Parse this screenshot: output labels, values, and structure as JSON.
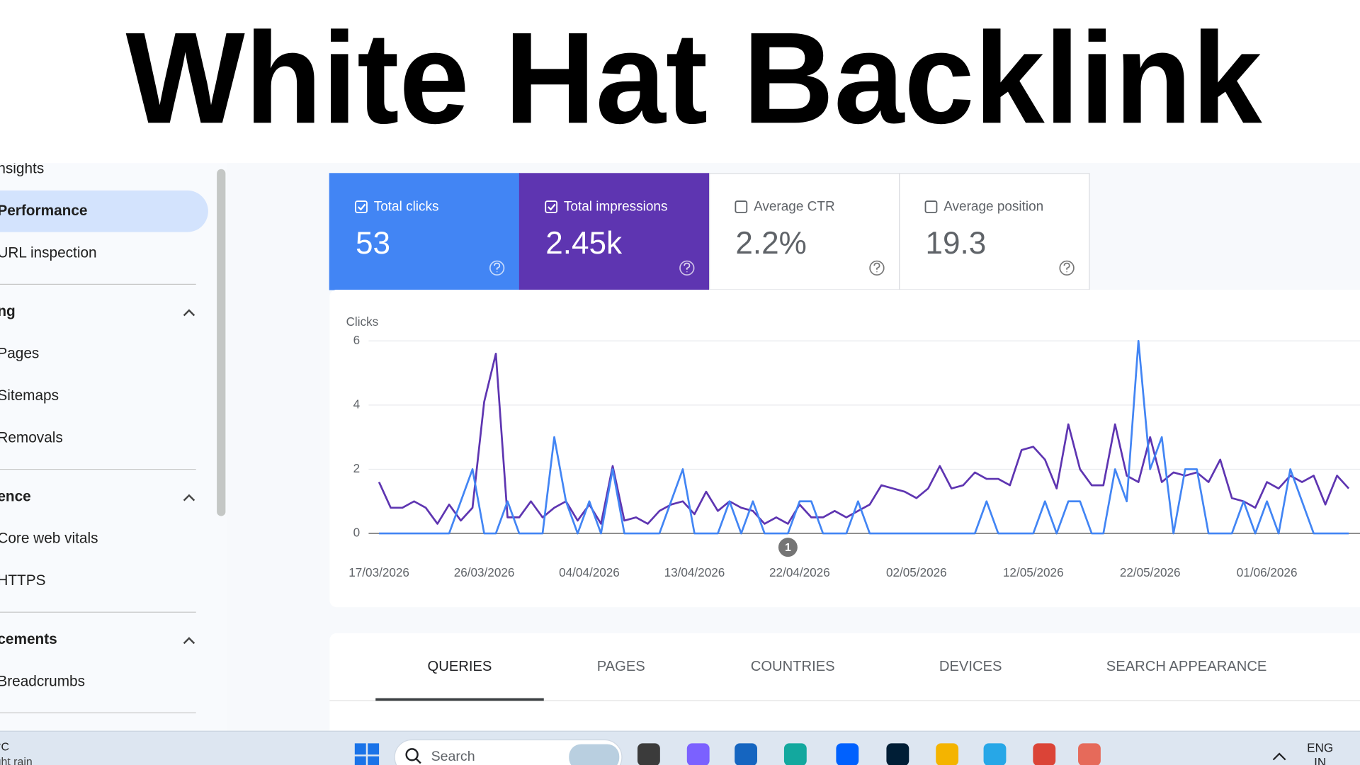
{
  "title": "White Hat Backlink",
  "sidebar": {
    "items": [
      "nsights",
      "Performance",
      "URL inspection"
    ],
    "selected": 1,
    "sections": [
      {
        "title": "ng",
        "items": [
          "Pages",
          "Sitemaps",
          "Removals"
        ]
      },
      {
        "title": "ence",
        "items": [
          "Core web vitals",
          "HTTPS"
        ]
      },
      {
        "title": "cements",
        "items": [
          "Breadcrumbs"
        ]
      }
    ]
  },
  "metrics": [
    {
      "label": "Total clicks",
      "value": "53",
      "checked": true,
      "color": "#4285f4"
    },
    {
      "label": "Total impressions",
      "value": "2.45k",
      "checked": true,
      "color": "#5e35b1"
    },
    {
      "label": "Average CTR",
      "value": "2.2%",
      "checked": false,
      "color": "#ffffff"
    },
    {
      "label": "Average position",
      "value": "19.3",
      "checked": false,
      "color": "#ffffff"
    }
  ],
  "chart_data": {
    "type": "line",
    "y_label": "Clicks",
    "x": [
      "17/03/2026",
      "18/03/2026",
      "19/03/2026",
      "20/03/2026",
      "21/03/2026",
      "22/03/2026",
      "23/03/2026",
      "24/03/2026",
      "25/03/2026",
      "26/03/2026",
      "27/03/2026",
      "28/03/2026",
      "29/03/2026",
      "30/03/2026",
      "31/03/2026",
      "01/04/2026",
      "02/04/2026",
      "03/04/2026",
      "04/04/2026",
      "05/04/2026",
      "06/04/2026",
      "07/04/2026",
      "08/04/2026",
      "09/04/2026",
      "10/04/2026",
      "11/04/2026",
      "12/04/2026",
      "13/04/2026",
      "14/04/2026",
      "15/04/2026",
      "16/04/2026",
      "17/04/2026",
      "18/04/2026",
      "19/04/2026",
      "20/04/2026",
      "21/04/2026",
      "22/04/2026",
      "23/04/2026",
      "24/04/2026",
      "25/04/2026",
      "26/04/2026",
      "27/04/2026",
      "28/04/2026",
      "29/04/2026",
      "30/04/2026",
      "01/05/2026",
      "02/05/2026",
      "03/05/2026",
      "04/05/2026",
      "05/05/2026",
      "06/05/2026",
      "07/05/2026",
      "08/05/2026",
      "09/05/2026",
      "10/05/2026",
      "11/05/2026",
      "12/05/2026",
      "13/05/2026",
      "14/05/2026",
      "15/05/2026",
      "16/05/2026",
      "17/05/2026",
      "18/05/2026",
      "19/05/2026",
      "20/05/2026",
      "21/05/2026",
      "22/05/2026",
      "23/05/2026",
      "24/05/2026",
      "25/05/2026",
      "26/05/2026",
      "27/05/2026",
      "28/05/2026",
      "29/05/2026",
      "30/05/2026",
      "31/05/2026",
      "01/06/2026",
      "02/06/2026",
      "03/06/2026",
      "04/06/2026",
      "05/06/2026",
      "06/06/2026",
      "07/06/2026",
      "08/06/2026"
    ],
    "series": [
      {
        "color": "#5e35b1",
        "values": [
          1.6,
          0.8,
          0.8,
          1.0,
          0.8,
          0.3,
          0.9,
          0.4,
          0.8,
          4.1,
          5.6,
          0.5,
          0.5,
          1.0,
          0.5,
          0.8,
          1.0,
          0.4,
          0.9,
          0.3,
          2.1,
          0.4,
          0.5,
          0.3,
          0.7,
          0.9,
          1.0,
          0.6,
          1.3,
          0.7,
          1.0,
          0.8,
          0.7,
          0.3,
          0.5,
          0.3,
          0.9,
          0.5,
          0.5,
          0.7,
          0.5,
          0.7,
          0.9,
          1.5,
          1.4,
          1.3,
          1.1,
          1.4,
          2.1,
          1.4,
          1.5,
          1.9,
          1.7,
          1.7,
          1.5,
          2.6,
          2.7,
          2.3,
          1.4,
          3.4,
          2.0,
          1.5,
          1.5,
          3.4,
          1.8,
          1.6,
          3.0,
          1.6,
          1.9,
          1.8,
          1.9,
          1.6,
          2.3,
          1.1,
          1.0,
          0.8,
          1.6,
          1.4,
          1.8,
          1.6,
          1.8,
          0.9,
          1.8,
          1.4
        ]
      },
      {
        "color": "#4285f4",
        "values": [
          0,
          0,
          0,
          0,
          0,
          0,
          0,
          1,
          2,
          0,
          0,
          1,
          0,
          0,
          0,
          3,
          1,
          0,
          1,
          0,
          2,
          0,
          0,
          0,
          0,
          1,
          2,
          0,
          0,
          0,
          1,
          0,
          1,
          0,
          0,
          0,
          1,
          1,
          0,
          0,
          0,
          1,
          0,
          0,
          0,
          0,
          0,
          0,
          0,
          0,
          0,
          0,
          1,
          0,
          0,
          0,
          0,
          1,
          0,
          1,
          1,
          0,
          0,
          2,
          1,
          6,
          2,
          3,
          0,
          2,
          2,
          0,
          0,
          0,
          1,
          0,
          1,
          0,
          2,
          1,
          0,
          0,
          0,
          0
        ]
      }
    ],
    "ylim": [
      0,
      6
    ],
    "yticks": [
      0,
      2,
      4,
      6
    ],
    "grid": true,
    "xticks": [
      "17/03/2026",
      "26/03/2026",
      "04/04/2026",
      "13/04/2026",
      "22/04/2026",
      "02/05/2026",
      "12/05/2026",
      "22/05/2026",
      "01/06/2026"
    ],
    "annotations": [
      {
        "x": "21/04/2026",
        "label": "1"
      }
    ]
  },
  "tabs": {
    "items": [
      "QUERIES",
      "PAGES",
      "COUNTRIES",
      "DEVICES",
      "SEARCH APPEARANCE"
    ],
    "active": 0
  },
  "taskbar": {
    "weather": "°C",
    "weather_note": "ght rain",
    "search": "Search",
    "language": "ENG",
    "region": "IN"
  }
}
